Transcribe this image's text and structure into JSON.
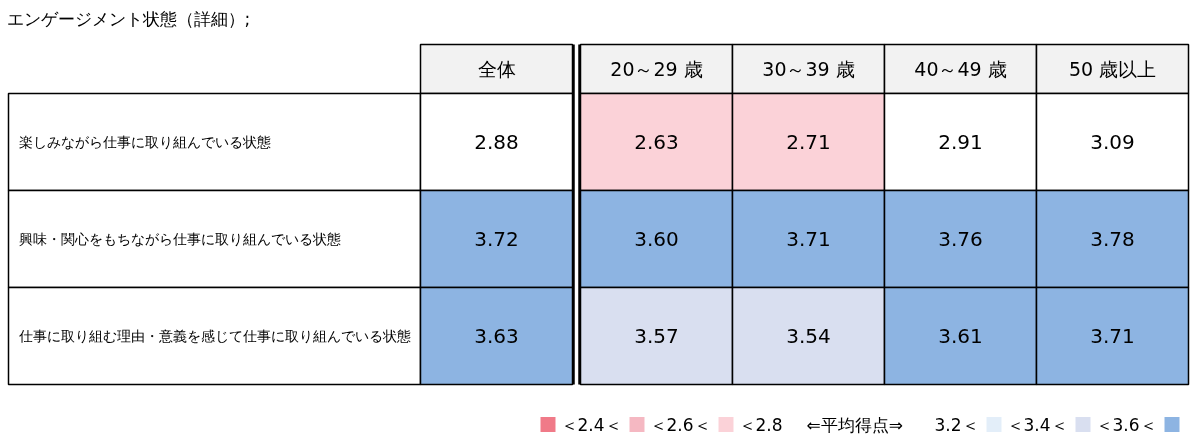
{
  "chart_data": {
    "type": "heatmap",
    "title": "エンゲージメント状態（詳細）;",
    "categories": [
      "全体",
      "20～29 歳",
      "30～39 歳",
      "40～49 歳",
      "50 歳以上"
    ],
    "y_categories": [
      "楽しみながら仕事に取り組んでいる状態",
      "興味・関心をもちながら仕事に取り組んでいる状態",
      "仕事に取り組む理由・意義を感じて仕事に取り組んでいる状態"
    ],
    "cells": [
      [
        2.88,
        2.63,
        2.71,
        2.91,
        3.09
      ],
      [
        3.72,
        3.6,
        3.71,
        3.76,
        3.78
      ],
      [
        3.63,
        3.57,
        3.54,
        3.61,
        3.71
      ]
    ],
    "cell_labels": [
      [
        "2.88",
        "2.63",
        "2.71",
        "2.91",
        "3.09"
      ],
      [
        "3.72",
        "3.60",
        "3.71",
        "3.76",
        "3.78"
      ],
      [
        "3.63",
        "3.57",
        "3.54",
        "3.61",
        "3.71"
      ]
    ],
    "colors": [
      [
        "#ffffff",
        "#fbd2d8",
        "#fbd2d8",
        "#ffffff",
        "#ffffff"
      ],
      [
        "#8db4e2",
        "#8db4e2",
        "#8db4e2",
        "#8db4e2",
        "#8db4e2"
      ],
      [
        "#8db4e2",
        "#d9dff0",
        "#d9dff0",
        "#8db4e2",
        "#8db4e2"
      ]
    ],
    "annotations": [
      "＜2.4＜",
      "＜2.6＜",
      "＜2.8",
      "⇐平均得点⇒",
      "3.2＜",
      "＜3.4＜",
      "＜3.6＜"
    ]
  }
}
